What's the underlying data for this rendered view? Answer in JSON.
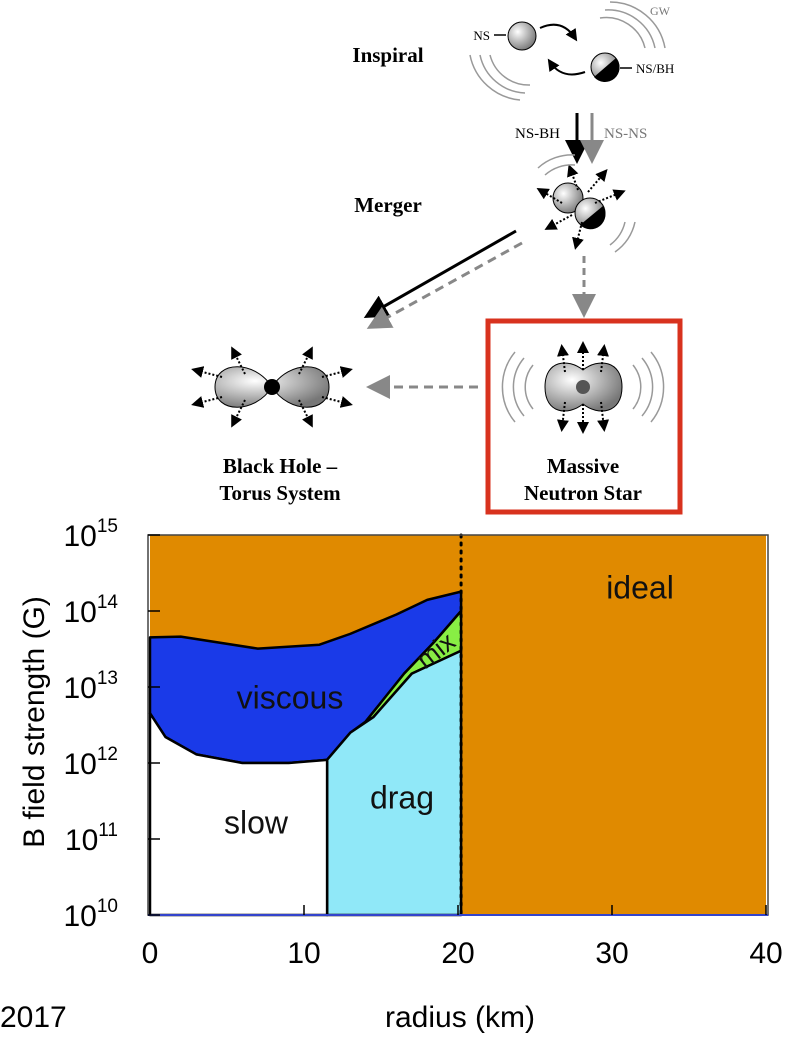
{
  "diagram": {
    "inspiral": "Inspiral",
    "merger": "Merger",
    "ns_bh_arrow": "NS-BH",
    "ns_ns_arrow": "NS-NS",
    "icon_labels": {
      "ns": "NS",
      "ns_bh": "NS/BH",
      "gw": "GW"
    },
    "black_hole_torus": [
      "Black Hole –",
      "Torus System"
    ],
    "massive_neutron_star": [
      "Massive",
      "Neutron Star"
    ]
  },
  "footer": "2017",
  "chart_data": {
    "type": "region",
    "xlabel": "radius (km)",
    "ylabel": "B field strength (G)",
    "xlim": [
      0,
      40
    ],
    "ylim": [
      10000000000.0,
      1000000000000000.0
    ],
    "log_y": true,
    "xticks": [
      0,
      10,
      20,
      30,
      40
    ],
    "yticks": [
      {
        "value": 10000000000.0,
        "label": "10^10"
      },
      {
        "value": 100000000000.0,
        "label": "10^11"
      },
      {
        "value": 1000000000000.0,
        "label": "10^12"
      },
      {
        "value": 10000000000000.0,
        "label": "10^13"
      },
      {
        "value": 100000000000000.0,
        "label": "10^14"
      },
      {
        "value": 1000000000000000.0,
        "label": "10^15"
      }
    ],
    "vline": 20.2,
    "regions": [
      {
        "name": "ideal",
        "color": "#e08a00",
        "x": [
          0,
          40,
          40,
          0
        ],
        "y": [
          10000000000.0,
          10000000000.0,
          1000000000000000.0,
          1000000000000000.0
        ]
      },
      {
        "name": "viscous",
        "color": "#1a3ae8",
        "x": [
          0,
          2,
          7,
          11,
          13,
          16,
          18,
          20.2,
          20.2,
          18.5,
          16.5,
          14,
          13,
          11.5,
          9,
          6,
          3,
          1,
          0
        ],
        "y": [
          45000000000000.0,
          46000000000000.0,
          32000000000000.0,
          36000000000000.0,
          50000000000000.0,
          90000000000000.0,
          140000000000000.0,
          180000000000000.0,
          100000000000000.0,
          40000000000000.0,
          15000000000000.0,
          3500000000000.0,
          2500000000000.0,
          1100000000000.0,
          1000000000000.0,
          1000000000000.0,
          1300000000000.0,
          2200000000000.0,
          4500000000000.0
        ]
      },
      {
        "name": "mix",
        "color": "#88ee44",
        "x": [
          14,
          16.5,
          18.5,
          20.2,
          20.2,
          17,
          14.5
        ],
        "y": [
          3500000000000.0,
          15000000000000.0,
          40000000000000.0,
          100000000000000.0,
          30000000000000.0,
          15000000000000.0,
          4000000000000.0
        ]
      },
      {
        "name": "drag",
        "color": "#90e8f8",
        "x": [
          11.5,
          11.5,
          13,
          14.5,
          17,
          20.2,
          20.2
        ],
        "y": [
          10000000000.0,
          1100000000000.0,
          2500000000000.0,
          4000000000000.0,
          15000000000000.0,
          30000000000000.0,
          10000000000.0
        ]
      },
      {
        "name": "slow",
        "color": "#ffffff",
        "x": [
          0,
          11.5,
          11.5,
          9,
          6,
          3,
          1,
          0
        ],
        "y": [
          10000000000.0,
          10000000000.0,
          1100000000000.0,
          1000000000000.0,
          1000000000000.0,
          1300000000000.0,
          2200000000000.0,
          4500000000000.0
        ]
      }
    ]
  }
}
